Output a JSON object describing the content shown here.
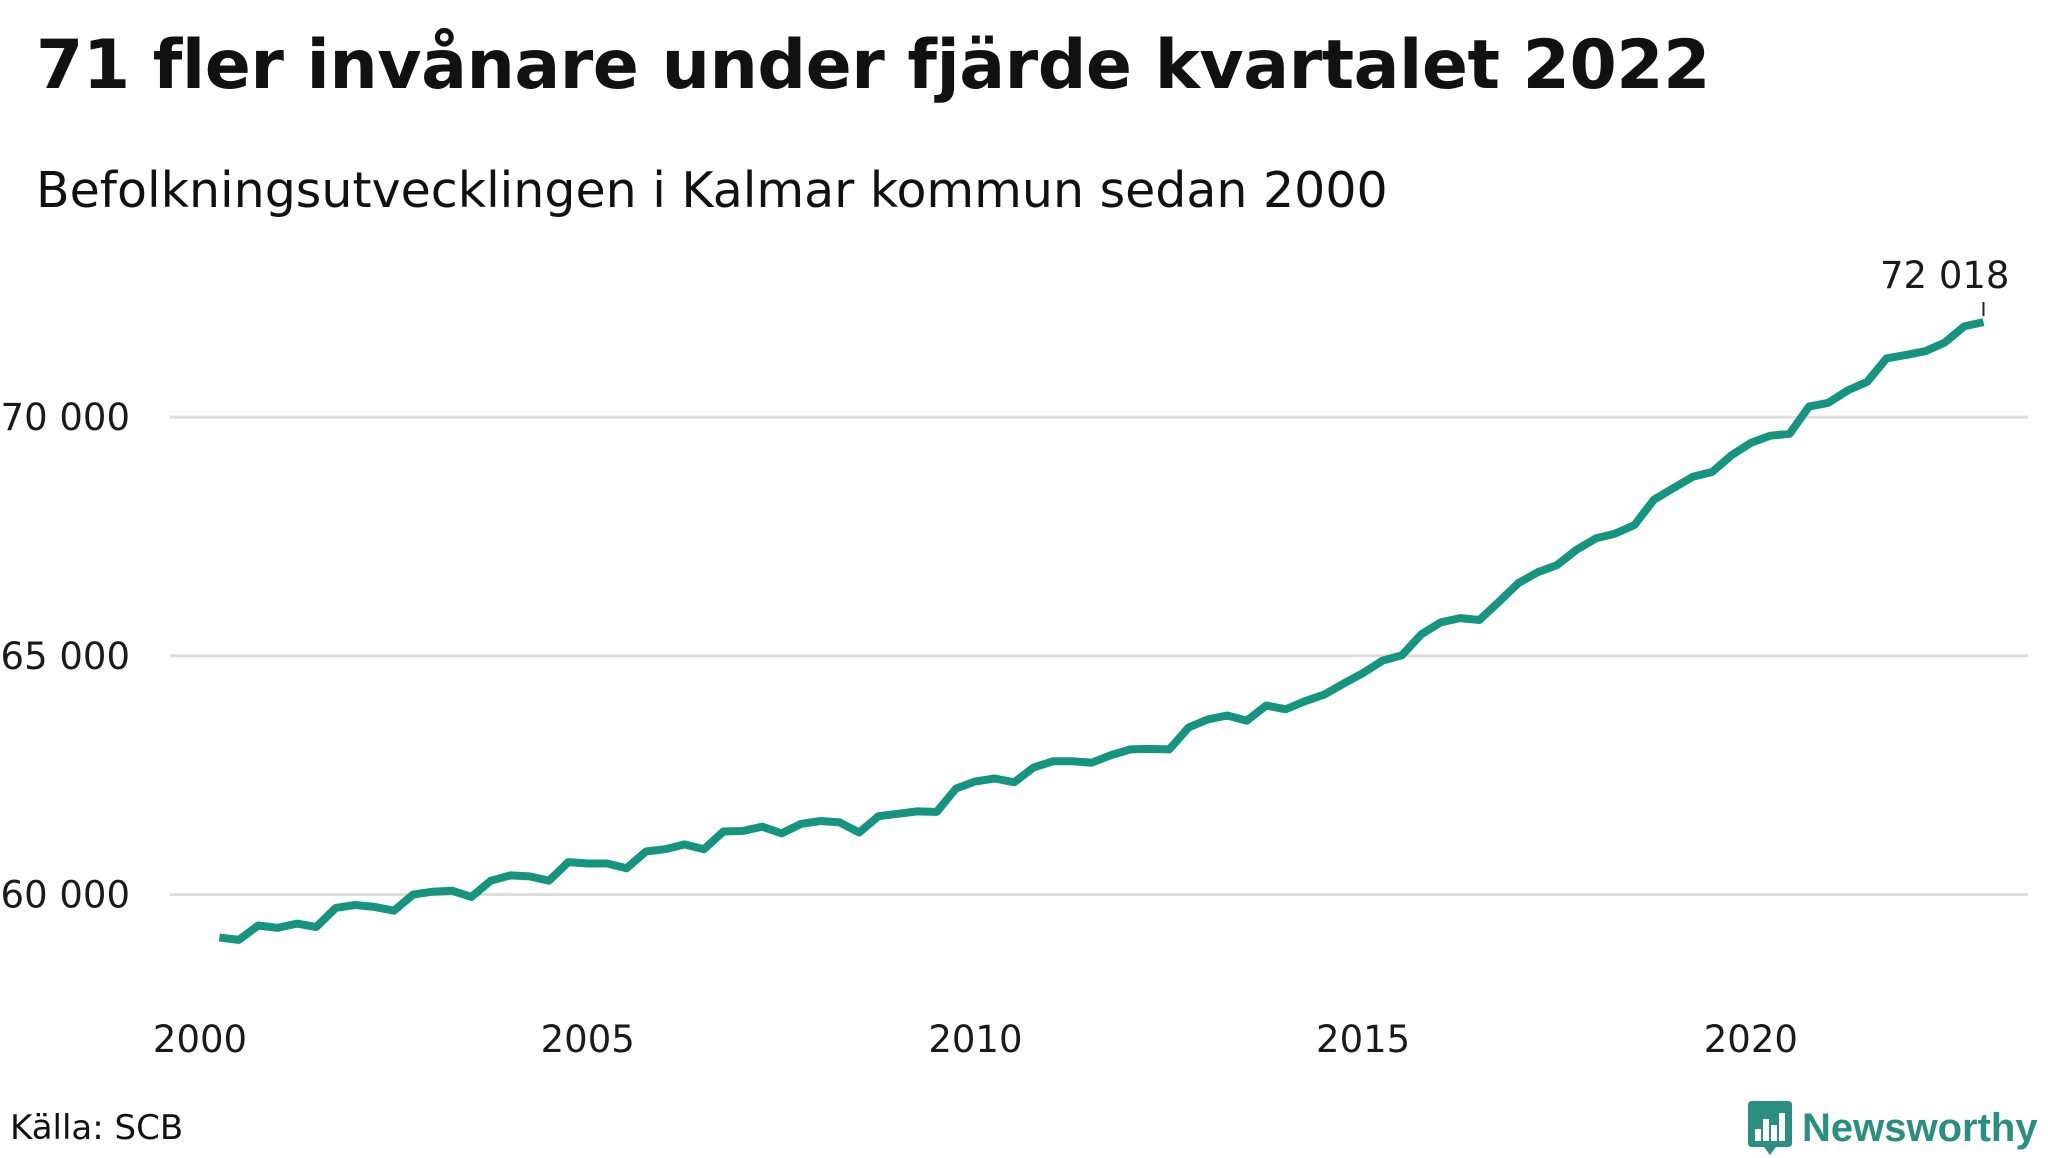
{
  "title": "71 fler invånare under fjärde kvartalet 2022",
  "subtitle": "Befolkningsutvecklingen i Kalmar kommun sedan 2000",
  "source": "Källa: SCB",
  "brand": {
    "name": "Newsworthy",
    "icon": "bar-chart-logo-icon",
    "color": "#2a8f80"
  },
  "colors": {
    "line": "#15957f",
    "grid": "#dddddd"
  },
  "chart_data": {
    "type": "line",
    "title": "71 fler invånare under fjärde kvartalet 2022",
    "subtitle": "Befolkningsutvecklingen i Kalmar kommun sedan 2000",
    "xlabel": "",
    "ylabel": "",
    "xlim": [
      2000.0,
      2023.6
    ],
    "ylim": [
      58000,
      73500
    ],
    "x_ticks": [
      2000,
      2005,
      2010,
      2015,
      2020
    ],
    "x_tick_labels": [
      "2000",
      "2005",
      "2010",
      "2015",
      "2020"
    ],
    "y_ticks": [
      60000,
      65000,
      70000
    ],
    "y_tick_labels": [
      "60 000",
      "65 000",
      "70 000"
    ],
    "grid": "horizontal",
    "end_label": "72 018",
    "series": [
      {
        "x": [
          2000.25,
          2000.5,
          2000.75,
          2001.0,
          2001.25,
          2001.5,
          2001.75,
          2002.0,
          2002.25,
          2002.5,
          2002.75,
          2003.0,
          2003.25,
          2003.5,
          2003.75,
          2004.0,
          2004.25,
          2004.5,
          2004.75,
          2005.0,
          2005.25,
          2005.5,
          2005.75,
          2006.0,
          2006.25,
          2006.5,
          2006.75,
          2007.0,
          2007.25,
          2007.5,
          2007.75,
          2008.0,
          2008.25,
          2008.5,
          2008.75,
          2009.0,
          2009.25,
          2009.5,
          2009.75,
          2010.0,
          2010.25,
          2010.5,
          2010.75,
          2011.0,
          2011.25,
          2011.5,
          2011.75,
          2012.0,
          2012.25,
          2012.5,
          2012.75,
          2013.0,
          2013.25,
          2013.5,
          2013.75,
          2014.0,
          2014.25,
          2014.5,
          2014.75,
          2015.0,
          2015.25,
          2015.5,
          2015.75,
          2016.0,
          2016.25,
          2016.5,
          2016.75,
          2017.0,
          2017.25,
          2017.5,
          2017.75,
          2018.0,
          2018.25,
          2018.5,
          2018.75,
          2019.0,
          2019.25,
          2019.5,
          2019.75,
          2020.0,
          2020.25,
          2020.5,
          2020.75,
          2021.0,
          2021.25,
          2021.5,
          2021.75,
          2022.0,
          2022.25,
          2022.5,
          2022.75,
          2023.0
        ],
        "values": [
          59100,
          59050,
          59350,
          59300,
          59390,
          59320,
          59720,
          59780,
          59740,
          59660,
          60000,
          60060,
          60080,
          59950,
          60290,
          60400,
          60380,
          60290,
          60680,
          60650,
          60650,
          60550,
          60900,
          60950,
          61050,
          60950,
          61320,
          61330,
          61420,
          61280,
          61480,
          61540,
          61510,
          61300,
          61640,
          61690,
          61740,
          61730,
          62220,
          62370,
          62430,
          62350,
          62660,
          62790,
          62790,
          62760,
          62920,
          63040,
          63050,
          63040,
          63500,
          63670,
          63750,
          63640,
          63960,
          63880,
          64050,
          64190,
          64420,
          64640,
          64900,
          65010,
          65450,
          65700,
          65790,
          65750,
          66130,
          66520,
          66750,
          66900,
          67220,
          67460,
          67560,
          67740,
          68270,
          68510,
          68750,
          68850,
          69200,
          69460,
          69610,
          69650,
          70220,
          70300,
          70560,
          70740,
          71230,
          71300,
          71380,
          71560,
          71900,
          71990
        ]
      }
    ]
  }
}
